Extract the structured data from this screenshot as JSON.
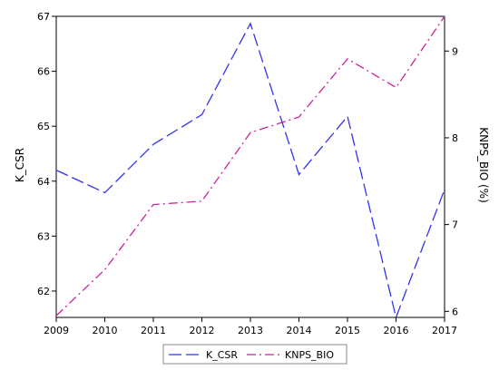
{
  "chart_data": {
    "type": "line",
    "x": [
      2009,
      2010,
      2011,
      2012,
      2013,
      2014,
      2015,
      2016,
      2017
    ],
    "xlim": [
      2009,
      2017
    ],
    "x_ticks": [
      "2009",
      "2010",
      "2011",
      "2012",
      "2013",
      "2014",
      "2015",
      "2016",
      "2017"
    ],
    "left_axis": {
      "label": "K_CSR",
      "ylim": [
        61.52,
        67.0
      ],
      "ticks": [
        62,
        63,
        64,
        65,
        66,
        67
      ],
      "tick_labels": [
        "62",
        "63",
        "64",
        "65",
        "66",
        "67"
      ]
    },
    "right_axis": {
      "label": "KNPS_BIO (%)",
      "ylim": [
        5.93,
        9.4
      ],
      "ticks": [
        6,
        7,
        8,
        9
      ],
      "tick_labels": [
        "6",
        "7",
        "8",
        "9"
      ]
    },
    "series": [
      {
        "name": "K_CSR",
        "axis": "left",
        "color": "#3333ee",
        "dash": "long-dash",
        "values": [
          64.2,
          63.79,
          64.67,
          65.21,
          66.87,
          64.12,
          65.18,
          61.52,
          63.85
        ]
      },
      {
        "name": "KNPS_BIO",
        "axis": "right",
        "color": "#cc2299",
        "dash": "dash-dot",
        "values": [
          5.95,
          6.48,
          7.23,
          7.27,
          8.06,
          8.24,
          8.91,
          8.58,
          9.4
        ]
      }
    ],
    "grid": false,
    "legend_position": "bottom"
  }
}
